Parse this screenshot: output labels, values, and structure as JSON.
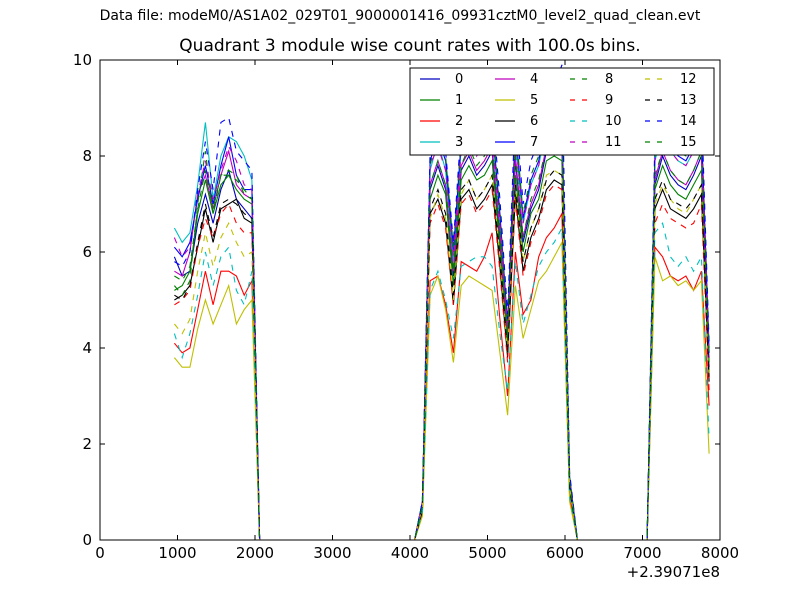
{
  "figure": {
    "suptitle": "Data file: modeM0/AS1A02_029T01_9000001416_09931cztM0_level2_quad_clean.evt"
  },
  "chart_data": {
    "type": "line",
    "title": "Quadrant 3 module wise count rates with 100.0s bins.",
    "xlabel": "",
    "ylabel": "",
    "x_offset_label": "+2.39071e8",
    "xlim": [
      0,
      8000
    ],
    "ylim": [
      0,
      10
    ],
    "xticks": [
      0,
      1000,
      2000,
      3000,
      4000,
      5000,
      6000,
      7000,
      8000
    ],
    "yticks": [
      0,
      2,
      4,
      6,
      8,
      10
    ],
    "legend_position": "top-right",
    "x": [
      960,
      1060,
      1160,
      1260,
      1360,
      1460,
      1560,
      1660,
      1760,
      1860,
      1960,
      2060,
      2160,
      4060,
      4160,
      4260,
      4360,
      4460,
      4560,
      4660,
      4760,
      4860,
      4960,
      5060,
      5160,
      5260,
      5360,
      5460,
      5560,
      5660,
      5760,
      5860,
      5960,
      6060,
      6160,
      7060,
      7160,
      7260,
      7360,
      7460,
      7560,
      7660,
      7760,
      7860
    ],
    "series": [
      {
        "name": "0",
        "style": "solid",
        "color": "#0000bf",
        "values": [
          5.9,
          5.5,
          5.6,
          6.6,
          7.2,
          6.6,
          7.3,
          7.7,
          7.1,
          6.9,
          6.7,
          0.0,
          0.0,
          0.0,
          0.7,
          7.3,
          7.8,
          7.3,
          5.5,
          7.7,
          8.0,
          7.6,
          7.8,
          8.1,
          6.3,
          4.2,
          7.9,
          6.2,
          6.9,
          7.3,
          8.1,
          8.3,
          8.2,
          1.2,
          0.0,
          0.0,
          7.4,
          8.0,
          7.6,
          7.4,
          7.3,
          7.6,
          8.0,
          3.6
        ]
      },
      {
        "name": "1",
        "style": "solid",
        "color": "#008000",
        "values": [
          5.2,
          5.3,
          5.6,
          6.8,
          7.5,
          6.8,
          7.4,
          7.6,
          7.3,
          7.1,
          7.0,
          0.0,
          0.0,
          0.0,
          0.7,
          7.1,
          7.6,
          7.2,
          5.3,
          7.5,
          7.8,
          7.5,
          7.6,
          7.9,
          6.1,
          4.1,
          7.6,
          6.0,
          6.8,
          7.1,
          7.9,
          8.0,
          7.9,
          1.1,
          0.0,
          0.0,
          7.3,
          7.8,
          7.4,
          7.2,
          7.1,
          7.4,
          7.7,
          3.5
        ]
      },
      {
        "name": "2",
        "style": "solid",
        "color": "#ff0000",
        "values": [
          4.1,
          3.9,
          4.0,
          4.8,
          5.6,
          4.9,
          5.6,
          5.6,
          5.5,
          5.1,
          5.4,
          0.0,
          0.0,
          0.0,
          0.6,
          5.4,
          5.5,
          4.9,
          3.9,
          5.8,
          5.7,
          5.6,
          5.9,
          6.4,
          4.6,
          3.0,
          6.0,
          4.7,
          5.0,
          5.9,
          6.3,
          6.5,
          6.8,
          0.9,
          0.0,
          0.0,
          6.1,
          5.9,
          5.5,
          5.4,
          5.5,
          5.2,
          5.6,
          2.8
        ]
      },
      {
        "name": "3",
        "style": "solid",
        "color": "#00bfbf",
        "values": [
          6.5,
          6.2,
          6.4,
          7.4,
          8.7,
          7.1,
          8.0,
          8.4,
          8.3,
          8.0,
          7.5,
          0.0,
          0.0,
          0.0,
          0.8,
          7.7,
          8.3,
          7.7,
          5.8,
          8.2,
          8.6,
          8.1,
          8.3,
          8.6,
          6.7,
          4.4,
          8.4,
          6.6,
          7.4,
          7.8,
          8.6,
          8.8,
          8.7,
          1.3,
          0.0,
          0.0,
          7.9,
          8.5,
          8.1,
          7.9,
          7.8,
          8.1,
          8.5,
          3.8
        ]
      },
      {
        "name": "4",
        "style": "solid",
        "color": "#bf00bf",
        "values": [
          5.6,
          5.5,
          6.0,
          7.2,
          7.6,
          6.9,
          7.6,
          8.1,
          7.4,
          7.2,
          7.1,
          0.0,
          0.0,
          0.0,
          0.7,
          7.4,
          7.9,
          7.4,
          5.6,
          7.8,
          8.1,
          7.7,
          7.9,
          8.2,
          6.4,
          4.3,
          8.0,
          6.3,
          7.0,
          7.4,
          8.2,
          8.4,
          8.3,
          1.2,
          0.0,
          0.0,
          7.5,
          8.1,
          7.7,
          7.5,
          7.4,
          7.7,
          8.1,
          3.6
        ]
      },
      {
        "name": "5",
        "style": "solid",
        "color": "#bfbf00",
        "values": [
          3.8,
          3.6,
          3.6,
          4.4,
          5.0,
          4.5,
          4.9,
          5.3,
          4.5,
          4.8,
          5.0,
          0.0,
          0.0,
          0.0,
          0.5,
          5.1,
          5.5,
          4.8,
          3.7,
          5.3,
          5.5,
          5.4,
          5.3,
          5.2,
          3.9,
          2.6,
          5.3,
          4.2,
          4.8,
          5.4,
          5.6,
          5.9,
          6.2,
          0.8,
          0.0,
          0.0,
          5.9,
          5.4,
          5.5,
          5.3,
          5.4,
          5.2,
          5.4,
          1.8
        ]
      },
      {
        "name": "6",
        "style": "solid",
        "color": "#000000",
        "values": [
          5.0,
          5.1,
          5.3,
          6.1,
          6.9,
          6.2,
          6.9,
          7.0,
          7.1,
          6.7,
          6.6,
          0.0,
          0.0,
          0.0,
          0.6,
          6.8,
          7.1,
          6.6,
          4.9,
          7.1,
          7.3,
          6.9,
          7.1,
          7.4,
          5.7,
          3.8,
          7.2,
          5.6,
          6.3,
          6.7,
          7.3,
          7.5,
          7.4,
          1.1,
          0.0,
          0.0,
          6.9,
          7.3,
          6.9,
          6.8,
          6.7,
          6.9,
          7.2,
          3.3
        ]
      },
      {
        "name": "7",
        "style": "solid",
        "color": "#0000ff",
        "values": [
          6.1,
          5.9,
          6.2,
          7.1,
          7.8,
          7.0,
          7.8,
          8.4,
          7.6,
          7.3,
          7.3,
          0.0,
          0.0,
          0.0,
          0.8,
          7.9,
          8.4,
          7.9,
          6.0,
          8.3,
          8.8,
          8.2,
          8.5,
          8.7,
          6.8,
          4.5,
          8.6,
          6.7,
          7.5,
          7.9,
          8.7,
          8.9,
          8.8,
          1.3,
          0.0,
          0.0,
          8.0,
          8.6,
          8.2,
          8.0,
          7.9,
          8.2,
          8.6,
          3.9
        ]
      },
      {
        "name": "8",
        "style": "dashed",
        "color": "#008000",
        "values": [
          5.3,
          5.1,
          5.4,
          7.0,
          8.1,
          6.8,
          7.6,
          7.6,
          7.5,
          7.3,
          7.1,
          0.0,
          0.0,
          0.0,
          0.8,
          7.8,
          8.5,
          8.0,
          6.1,
          8.4,
          8.8,
          8.3,
          8.5,
          8.8,
          6.9,
          4.5,
          8.7,
          6.8,
          7.6,
          8.0,
          8.8,
          9.0,
          8.9,
          1.3,
          0.0,
          0.0,
          8.1,
          8.7,
          8.3,
          8.1,
          8.0,
          8.3,
          8.7,
          4.0
        ]
      },
      {
        "name": "9",
        "style": "dashed",
        "color": "#ff0000",
        "values": [
          4.9,
          5.0,
          5.2,
          6.1,
          6.7,
          6.3,
          6.8,
          7.0,
          6.6,
          6.4,
          6.4,
          0.0,
          0.0,
          0.0,
          0.6,
          6.6,
          7.0,
          6.5,
          4.9,
          7.0,
          7.2,
          6.8,
          7.0,
          7.3,
          5.6,
          3.7,
          7.1,
          5.5,
          6.2,
          6.6,
          7.2,
          7.4,
          7.3,
          1.0,
          0.0,
          0.0,
          6.6,
          7.0,
          6.7,
          6.6,
          6.5,
          6.6,
          7.0,
          3.1
        ]
      },
      {
        "name": "10",
        "style": "dashed",
        "color": "#00bfbf",
        "values": [
          4.3,
          3.8,
          4.3,
          5.1,
          6.0,
          5.3,
          5.9,
          6.1,
          5.2,
          4.9,
          5.6,
          0.0,
          0.0,
          0.0,
          0.6,
          5.2,
          5.6,
          5.0,
          4.2,
          5.7,
          5.8,
          5.9,
          5.9,
          5.7,
          4.3,
          3.1,
          5.8,
          4.5,
          5.1,
          5.7,
          6.0,
          6.2,
          6.5,
          0.9,
          0.0,
          0.0,
          6.4,
          6.6,
          5.9,
          5.7,
          5.9,
          5.6,
          5.9,
          2.1
        ]
      },
      {
        "name": "11",
        "style": "dashed",
        "color": "#bf00bf",
        "values": [
          6.3,
          5.9,
          6.1,
          7.2,
          7.9,
          7.1,
          7.7,
          8.2,
          7.9,
          7.4,
          7.3,
          0.0,
          0.0,
          0.0,
          0.8,
          7.8,
          8.2,
          7.7,
          5.9,
          8.1,
          8.6,
          8.0,
          8.3,
          8.5,
          6.6,
          4.4,
          8.4,
          6.6,
          7.4,
          7.8,
          8.6,
          8.8,
          8.6,
          1.3,
          0.0,
          0.0,
          7.9,
          8.5,
          8.1,
          7.9,
          7.8,
          8.1,
          8.5,
          3.8
        ]
      },
      {
        "name": "12",
        "style": "dashed",
        "color": "#bfbf00",
        "values": [
          4.5,
          4.3,
          4.6,
          5.6,
          6.4,
          5.7,
          6.3,
          6.6,
          6.2,
          5.9,
          6.0,
          0.0,
          0.0,
          0.0,
          0.7,
          6.7,
          7.2,
          6.7,
          5.0,
          7.2,
          7.5,
          7.1,
          7.3,
          7.6,
          5.9,
          3.9,
          7.4,
          5.8,
          6.5,
          6.9,
          7.6,
          7.7,
          7.6,
          1.1,
          0.0,
          0.0,
          7.0,
          7.4,
          7.1,
          6.9,
          6.8,
          7.1,
          7.4,
          3.4
        ]
      },
      {
        "name": "13",
        "style": "dashed",
        "color": "#000000",
        "values": [
          5.1,
          5.0,
          5.3,
          6.2,
          7.0,
          6.3,
          7.0,
          7.1,
          7.0,
          6.8,
          6.7,
          0.0,
          0.0,
          0.0,
          0.7,
          6.9,
          7.3,
          6.8,
          5.1,
          7.3,
          7.5,
          7.1,
          7.3,
          7.6,
          5.9,
          3.9,
          7.4,
          5.8,
          6.5,
          6.9,
          7.5,
          7.7,
          7.6,
          1.1,
          0.0,
          0.0,
          7.1,
          7.5,
          7.1,
          7.0,
          6.9,
          7.1,
          7.4,
          3.4
        ]
      },
      {
        "name": "14",
        "style": "dashed",
        "color": "#0000ff",
        "values": [
          5.8,
          5.7,
          6.0,
          7.3,
          8.3,
          7.3,
          8.7,
          8.8,
          8.1,
          7.9,
          7.7,
          0.0,
          0.0,
          0.0,
          0.8,
          8.1,
          8.7,
          8.1,
          6.2,
          8.6,
          9.1,
          8.5,
          8.9,
          9.1,
          7.1,
          4.7,
          9.1,
          7.0,
          7.9,
          8.3,
          9.2,
          9.4,
          9.9,
          1.4,
          0.0,
          0.0,
          8.4,
          9.0,
          8.6,
          8.3,
          8.2,
          8.6,
          9.1,
          4.1
        ]
      },
      {
        "name": "15",
        "style": "dashed",
        "color": "#008000",
        "values": [
          5.5,
          5.4,
          5.7,
          6.9,
          7.7,
          6.9,
          7.6,
          7.7,
          7.6,
          7.2,
          7.1,
          0.0,
          0.0,
          0.0,
          0.7,
          7.4,
          7.9,
          7.4,
          5.6,
          7.8,
          8.2,
          7.8,
          8.0,
          8.3,
          6.4,
          4.3,
          8.1,
          6.3,
          7.1,
          7.5,
          8.2,
          8.4,
          8.3,
          1.2,
          0.0,
          0.0,
          7.6,
          8.1,
          7.7,
          7.5,
          7.4,
          7.7,
          8.1,
          3.7
        ]
      }
    ]
  }
}
